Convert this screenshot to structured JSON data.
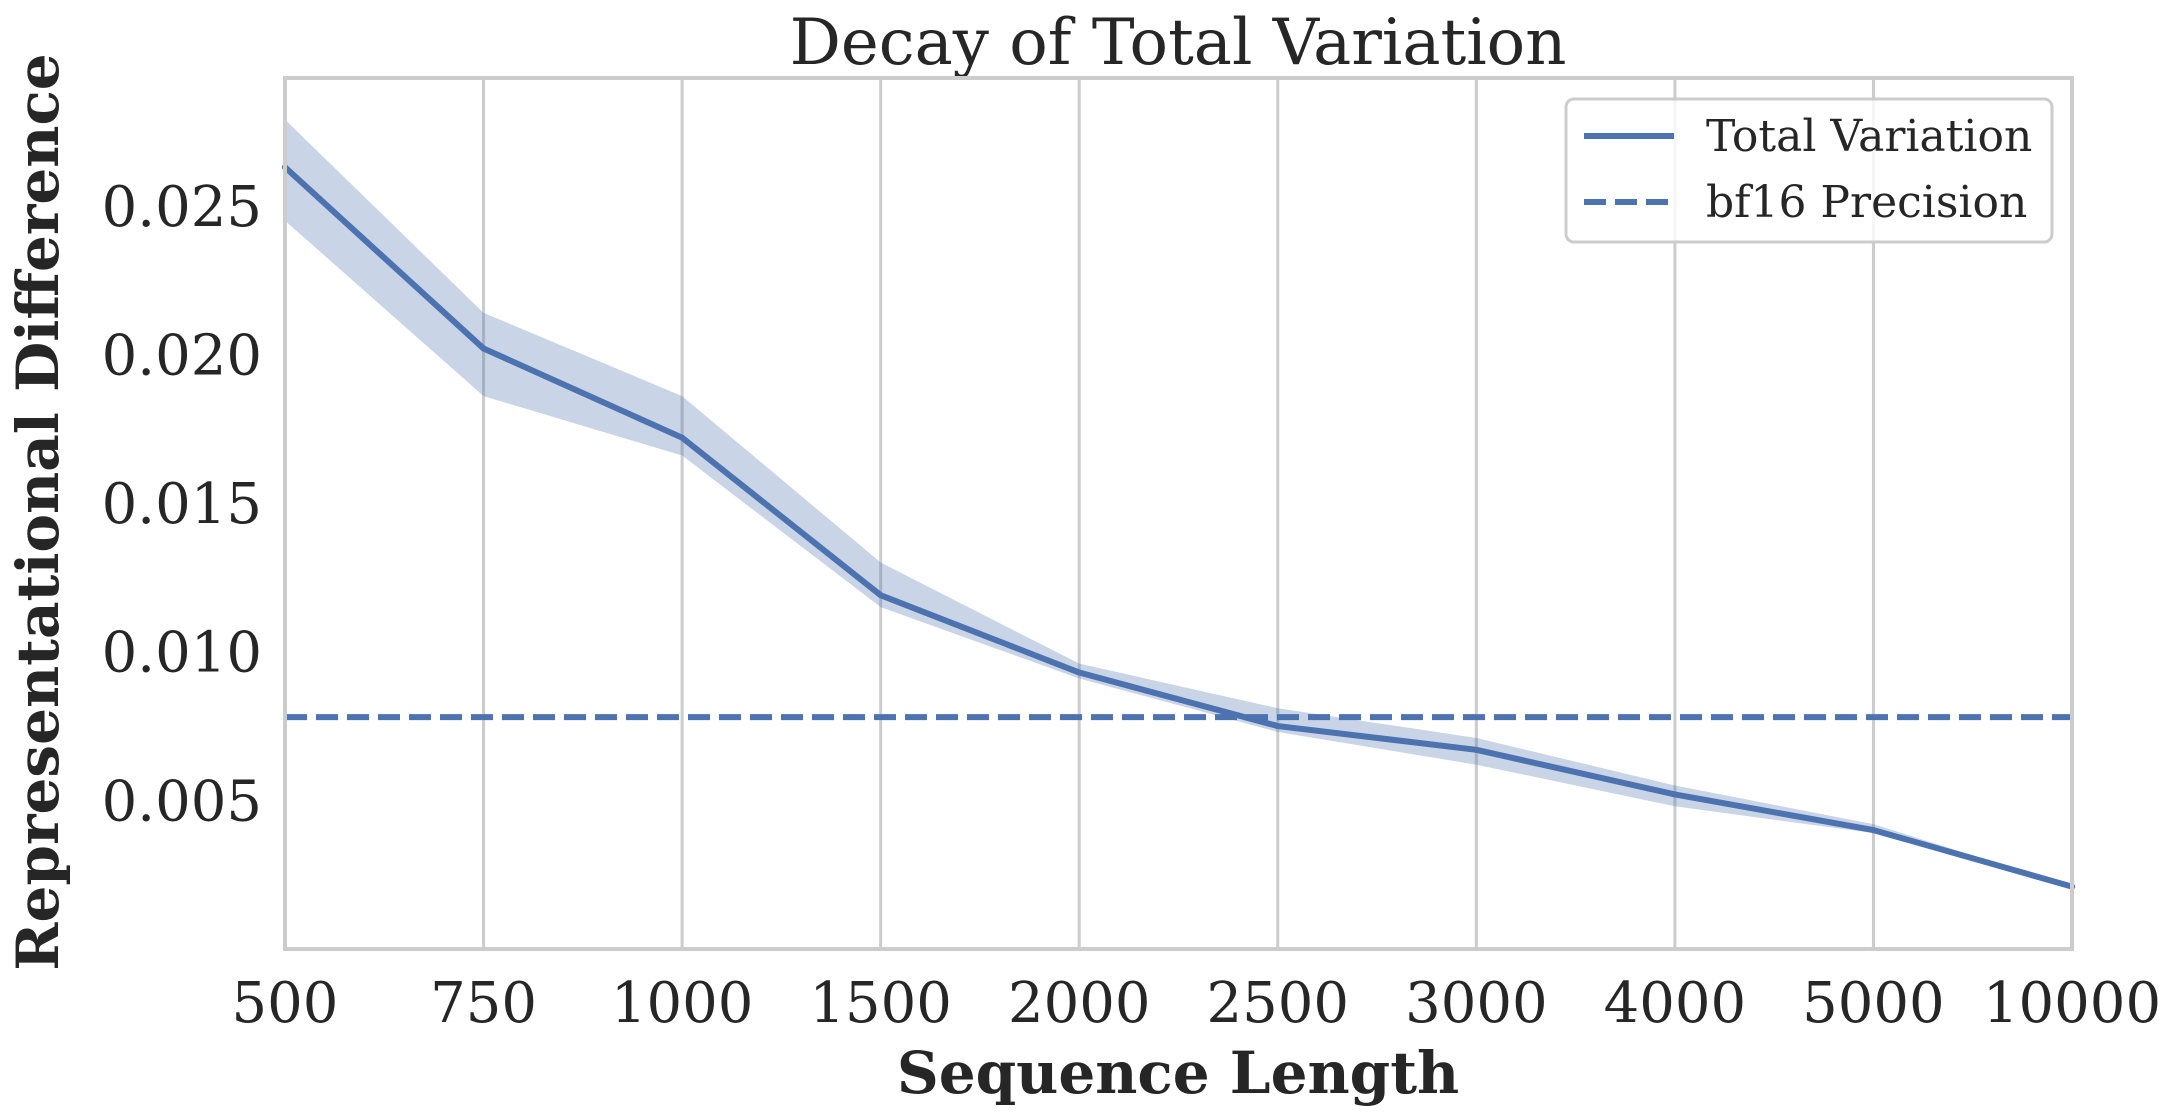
{
  "chart_data": {
    "type": "line",
    "title": "Decay of Total Variation",
    "xlabel": "Sequence Length",
    "ylabel": "Representational Difference",
    "x_axis_type": "categorical",
    "categories": [
      "500",
      "750",
      "1000",
      "1500",
      "2000",
      "2500",
      "3000",
      "4000",
      "5000",
      "10000"
    ],
    "ylim": [
      0,
      0.0293
    ],
    "yticks": [
      0.005,
      0.01,
      0.015,
      0.02,
      0.025
    ],
    "ytick_labels": [
      "0.005",
      "0.010",
      "0.015",
      "0.020",
      "0.025"
    ],
    "grid": "vertical",
    "legend_position": "top-right",
    "series": [
      {
        "name": "Total Variation",
        "style": "solid",
        "color": "#4c72b0",
        "values": [
          0.0263,
          0.0202,
          0.0172,
          0.0119,
          0.0093,
          0.0075,
          0.0067,
          0.0052,
          0.004,
          0.0021
        ],
        "band_lower": [
          0.0245,
          0.0186,
          0.0166,
          0.0115,
          0.0091,
          0.0073,
          0.0062,
          0.0048,
          0.0039,
          0.0021
        ],
        "band_upper": [
          0.0279,
          0.0214,
          0.0186,
          0.013,
          0.0096,
          0.0081,
          0.0071,
          0.0055,
          0.0042,
          0.0021
        ]
      },
      {
        "name": "bf16 Precision",
        "style": "dashed",
        "color": "#4c72b0",
        "constant": 0.0078
      }
    ]
  }
}
